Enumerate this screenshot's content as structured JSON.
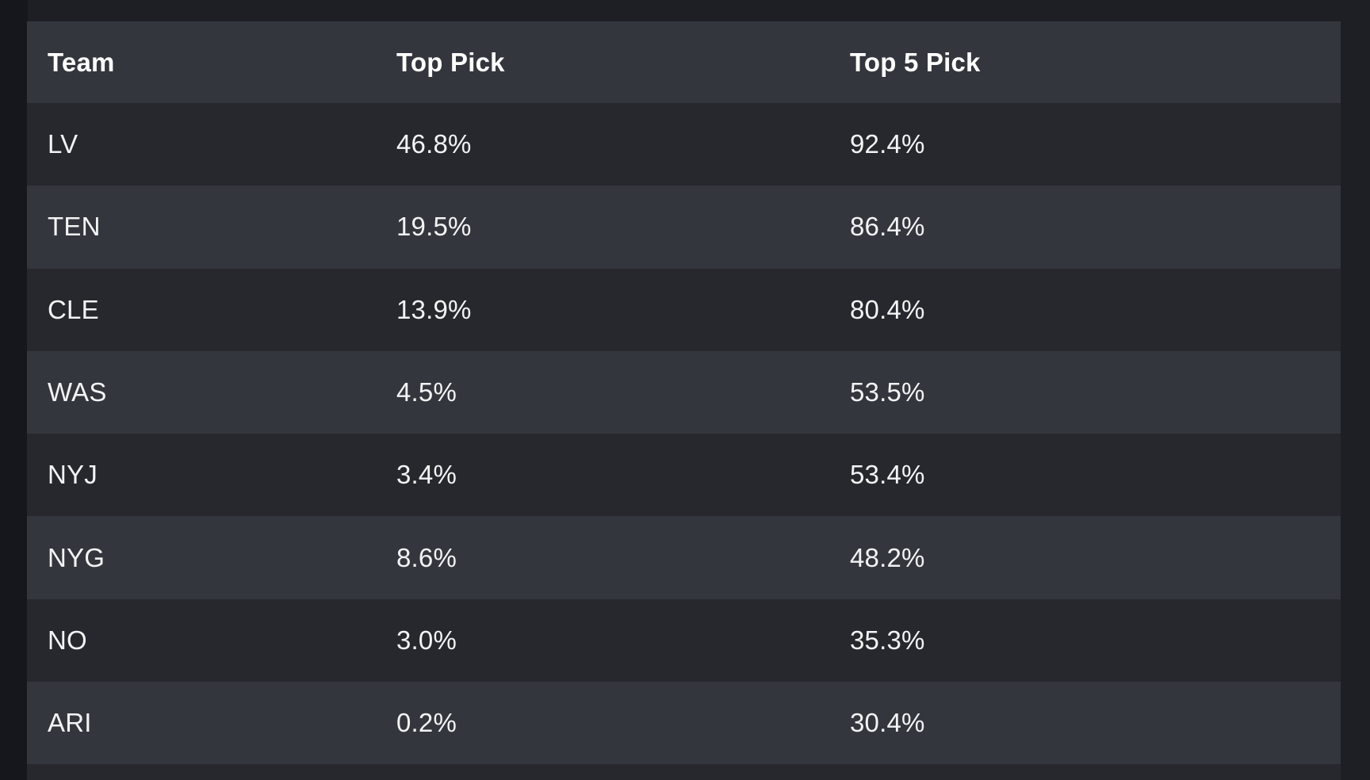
{
  "page": {
    "background": "#1d1f24",
    "left_band_color": "#15171c"
  },
  "table": {
    "columns": [
      "Team",
      "Top Pick",
      "Top 5 Pick"
    ],
    "rows": [
      {
        "team": "LV",
        "top_pick": "46.8%",
        "top5_pick": "92.4%"
      },
      {
        "team": "TEN",
        "top_pick": "19.5%",
        "top5_pick": "86.4%"
      },
      {
        "team": "CLE",
        "top_pick": "13.9%",
        "top5_pick": "80.4%"
      },
      {
        "team": "WAS",
        "top_pick": "4.5%",
        "top5_pick": "53.5%"
      },
      {
        "team": "NYJ",
        "top_pick": "3.4%",
        "top5_pick": "53.4%"
      },
      {
        "team": "NYG",
        "top_pick": "8.6%",
        "top5_pick": "48.2%"
      },
      {
        "team": "NO",
        "top_pick": "3.0%",
        "top5_pick": "35.3%"
      },
      {
        "team": "ARI",
        "top_pick": "0.2%",
        "top5_pick": "30.4%"
      }
    ],
    "colors": {
      "header_bg": "#33363c",
      "row_light": "#33363c",
      "row_dark": "#26282e",
      "text": "#f2f3f4",
      "header_text": "#ffffff"
    }
  },
  "chart_data": {
    "type": "table",
    "columns": [
      "Team",
      "Top Pick",
      "Top 5 Pick"
    ],
    "rows": [
      [
        "LV",
        "46.8%",
        "92.4%"
      ],
      [
        "TEN",
        "19.5%",
        "86.4%"
      ],
      [
        "CLE",
        "13.9%",
        "80.4%"
      ],
      [
        "WAS",
        "4.5%",
        "53.5%"
      ],
      [
        "NYJ",
        "3.4%",
        "53.4%"
      ],
      [
        "NYG",
        "8.6%",
        "48.2%"
      ],
      [
        "NO",
        "3.0%",
        "35.3%"
      ],
      [
        "ARI",
        "0.2%",
        "30.4%"
      ]
    ]
  }
}
